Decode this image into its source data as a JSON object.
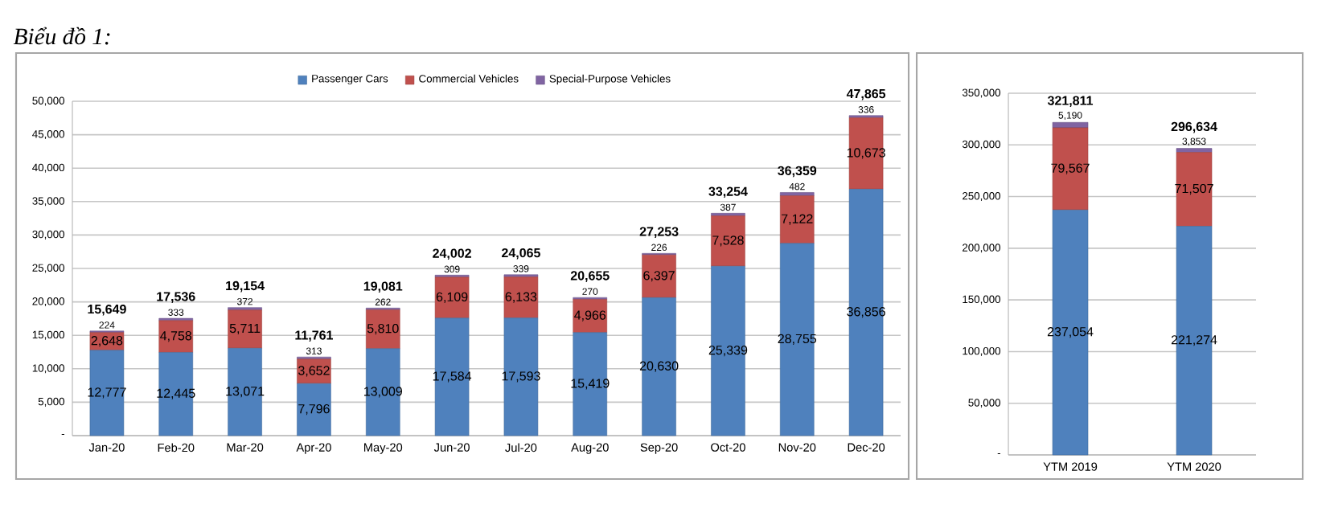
{
  "chart_data": [
    {
      "type": "bar",
      "title": "Biểu đồ 1:",
      "stacked": true,
      "grid": "y",
      "legend": "top",
      "categories": [
        "Jan-20",
        "Feb-20",
        "Mar-20",
        "Apr-20",
        "May-20",
        "Jun-20",
        "Jul-20",
        "Aug-20",
        "Sep-20",
        "Oct-20",
        "Nov-20",
        "Dec-20"
      ],
      "series": [
        {
          "name": "Passenger Cars",
          "color": "#4f81bd",
          "values": [
            12777,
            12445,
            13071,
            7796,
            13009,
            17584,
            17593,
            15419,
            20630,
            25339,
            28755,
            36856
          ],
          "value_labels": [
            "12,777",
            "12,445",
            "13,071",
            "7,796",
            "13,009",
            "17,584",
            "17,593",
            "15,419",
            "20,630",
            "25,339",
            "28,755",
            "36,856"
          ]
        },
        {
          "name": "Commercial Vehicles",
          "color": "#c0504d",
          "values": [
            2648,
            4758,
            5711,
            3652,
            5810,
            6109,
            6133,
            4966,
            6397,
            7528,
            7122,
            10673
          ],
          "value_labels": [
            "2,648",
            "4,758",
            "5,711",
            "3,652",
            "5,810",
            "6,109",
            "6,133",
            "4,966",
            "6,397",
            "7,528",
            "7,122",
            "10,673"
          ]
        },
        {
          "name": "Special-Purpose Vehicles",
          "color": "#8064a2",
          "values": [
            224,
            333,
            372,
            313,
            262,
            309,
            339,
            270,
            226,
            387,
            482,
            336
          ],
          "value_labels": [
            "224",
            "333",
            "372",
            "313",
            "262",
            "309",
            "339",
            "270",
            "226",
            "387",
            "482",
            "336"
          ]
        }
      ],
      "totals": [
        "15,649",
        "17,536",
        "19,154",
        "11,761",
        "19,081",
        "24,002",
        "24,065",
        "20,655",
        "27,253",
        "33,254",
        "36,359",
        "47,865"
      ],
      "ylim": [
        0,
        50000
      ],
      "yticks": [
        {
          "value": 0,
          "label": "-"
        },
        {
          "value": 5000,
          "label": "5,000"
        },
        {
          "value": 10000,
          "label": "10,000"
        },
        {
          "value": 15000,
          "label": "15,000"
        },
        {
          "value": 20000,
          "label": "20,000"
        },
        {
          "value": 25000,
          "label": "25,000"
        },
        {
          "value": 30000,
          "label": "30,000"
        },
        {
          "value": 35000,
          "label": "35,000"
        },
        {
          "value": 40000,
          "label": "40,000"
        },
        {
          "value": 45000,
          "label": "45,000"
        },
        {
          "value": 50000,
          "label": "50,000"
        }
      ]
    },
    {
      "type": "bar",
      "stacked": true,
      "grid": "y",
      "categories": [
        "YTM 2019",
        "YTM 2020"
      ],
      "series": [
        {
          "color": "#4f81bd",
          "values": [
            237054,
            221274
          ],
          "value_labels": [
            "237,054",
            "221,274"
          ]
        },
        {
          "color": "#c0504d",
          "values": [
            79567,
            71507
          ],
          "value_labels": [
            "79,567",
            "71,507"
          ]
        },
        {
          "color": "#8064a2",
          "values": [
            5190,
            3853
          ],
          "value_labels": [
            "5,190",
            "3,853"
          ]
        }
      ],
      "totals": [
        "321,811",
        "296,634"
      ],
      "ylim": [
        0,
        350000
      ],
      "yticks": [
        {
          "value": 0,
          "label": "-"
        },
        {
          "value": 50000,
          "label": "50,000"
        },
        {
          "value": 100000,
          "label": "100,000"
        },
        {
          "value": 150000,
          "label": "150,000"
        },
        {
          "value": 200000,
          "label": "200,000"
        },
        {
          "value": 250000,
          "label": "250,000"
        },
        {
          "value": 300000,
          "label": "300,000"
        },
        {
          "value": 350000,
          "label": "350,000"
        }
      ]
    }
  ]
}
